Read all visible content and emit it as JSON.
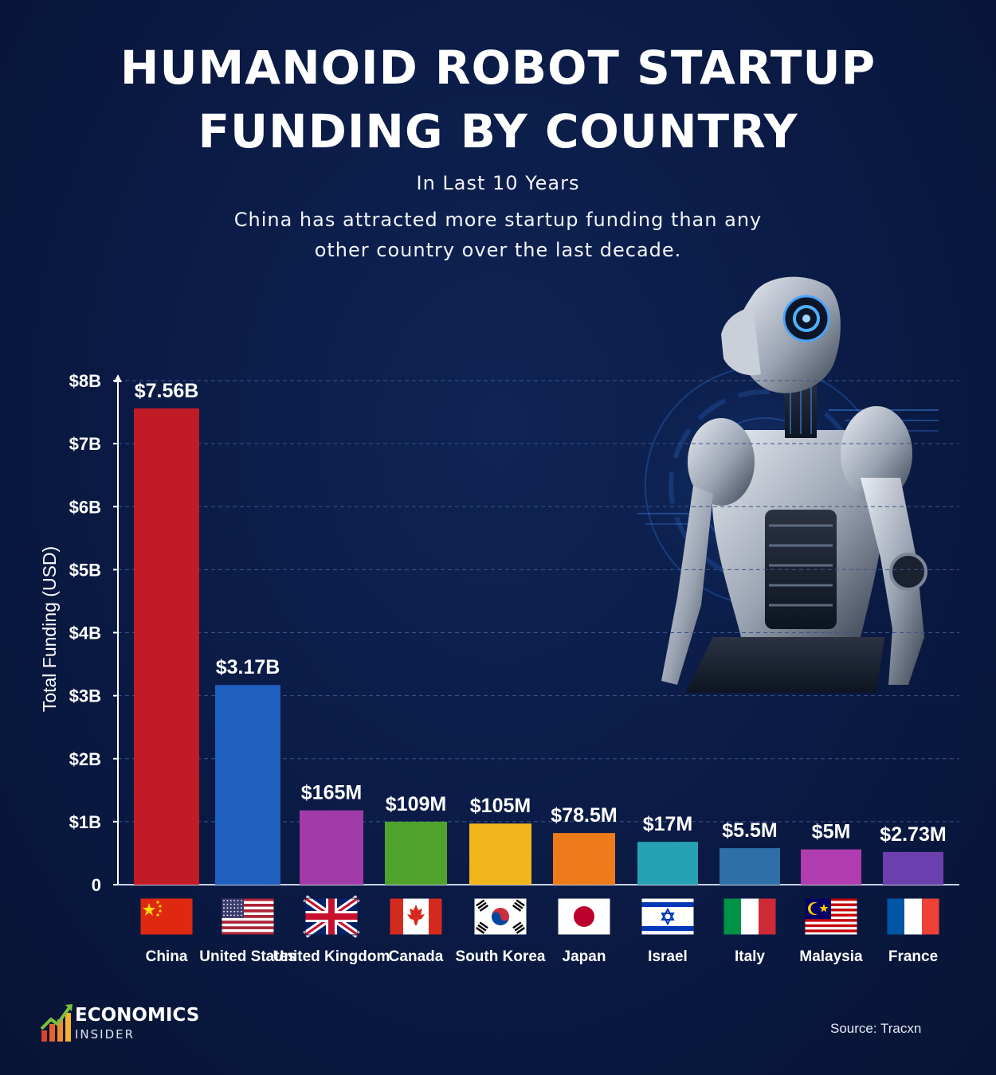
{
  "header": {
    "title_line1": "HUMANOID ROBOT STARTUP",
    "title_line2": "FUNDING BY COUNTRY",
    "subtitle": "In Last 10 Years",
    "description_line1": "China has attracted more startup funding than any",
    "description_line2": "other country over the last decade."
  },
  "footer": {
    "brand_line1": "ECONOMICS",
    "brand_line2": "INSIDER",
    "source": "Source: Tracxn"
  },
  "chart_data": {
    "type": "bar",
    "ylabel": "Total Funding (USD)",
    "ylim": [
      0,
      8
    ],
    "yunit": "billion USD",
    "yticks": [
      "0",
      "$1B",
      "$2B",
      "$3B",
      "$4B",
      "$5B",
      "$6B",
      "$7B",
      "$8B"
    ],
    "grid": true,
    "categories": [
      "China",
      "United States",
      "United Kingdom",
      "Canada",
      "South Korea",
      "Japan",
      "Israel",
      "Italy",
      "Malaysia",
      "France"
    ],
    "values": [
      7.56,
      3.17,
      0.165,
      0.109,
      0.105,
      0.0785,
      0.017,
      0.0055,
      0.005,
      0.00273
    ],
    "value_labels": [
      "$7.56B",
      "$3.17B",
      "$165M",
      "$109M",
      "$105M",
      "$78.5M",
      "$17M",
      "$5.5M",
      "$5M",
      "$2.73M"
    ],
    "bar_colors": [
      "#c11b26",
      "#1f5fbd",
      "#a23aa8",
      "#4fa32d",
      "#f2b61c",
      "#ef7a1a",
      "#27a2b5",
      "#2f6fa8",
      "#b03cb0",
      "#6c3fae"
    ],
    "flags": [
      "china-flag",
      "usa-flag",
      "uk-flag",
      "canada-flag",
      "south-korea-flag",
      "japan-flag",
      "israel-flag",
      "italy-flag",
      "malaysia-flag",
      "france-flag"
    ]
  }
}
